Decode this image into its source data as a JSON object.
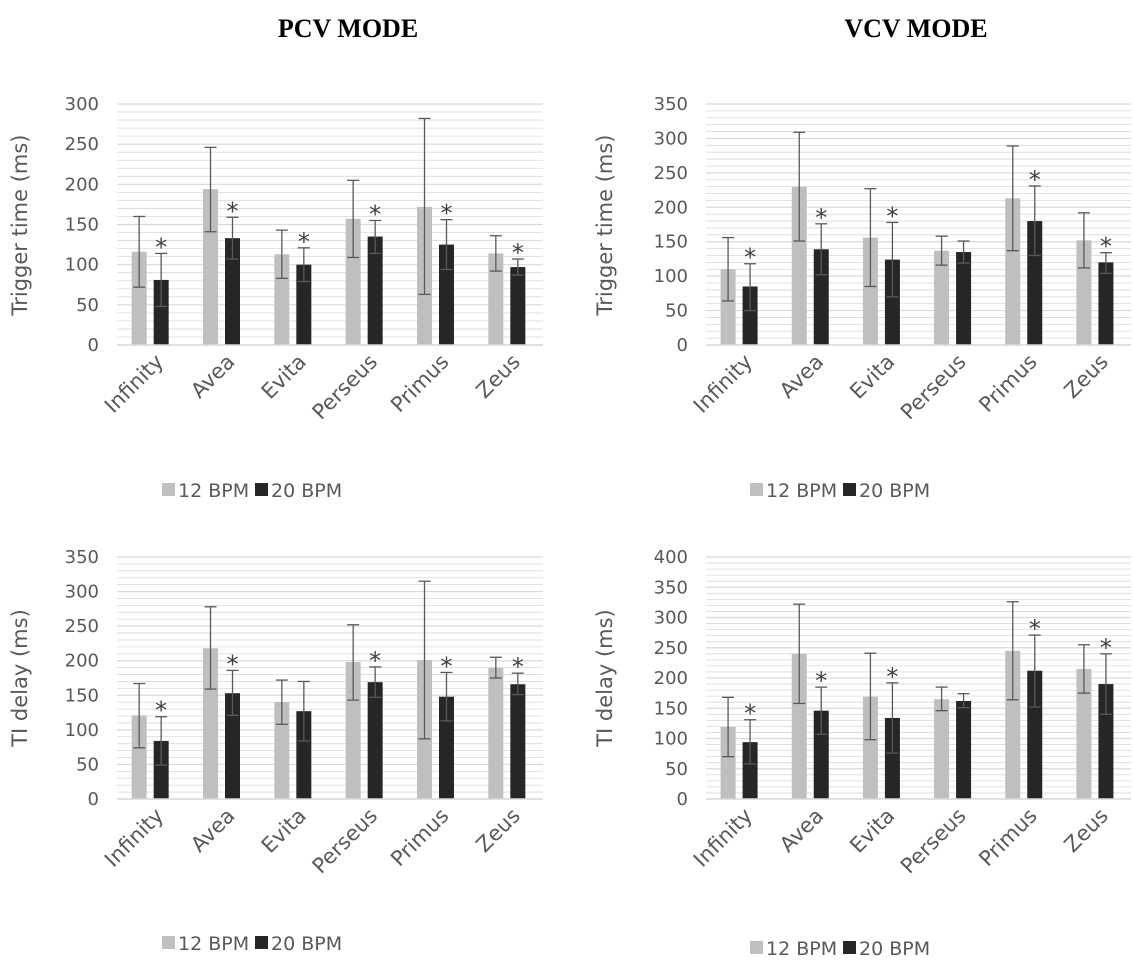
{
  "titles": {
    "pcv": "PCV MODE",
    "vcv": "VCV MODE"
  },
  "colors": {
    "bpm12": "#bfbfbf",
    "bpm20": "#262626",
    "grid": "#d9d9d9",
    "error_bar": "#595959",
    "axis_text": "#595959"
  },
  "chart_data": [
    {
      "id": "pcv-trigger",
      "type": "bar",
      "title": "",
      "xlabel": "",
      "ylabel": "Trigger time (ms)",
      "ylim": [
        0,
        300
      ],
      "ytick_step": 50,
      "minor_grid_step": 10,
      "categories": [
        "Infinity",
        "Avea",
        "Evita",
        "Perseus",
        "Primus",
        "Zeus"
      ],
      "significance_marker": "*",
      "legend_position": "bottom",
      "series": [
        {
          "name": "12 BPM",
          "values": [
            116,
            194,
            113,
            157,
            172,
            114
          ],
          "err_low": [
            72,
            141,
            83,
            109,
            63,
            92
          ],
          "err_high": [
            160,
            246,
            143,
            205,
            282,
            136
          ]
        },
        {
          "name": "20 BPM",
          "values": [
            81,
            133,
            100,
            135,
            125,
            97
          ],
          "err_low": [
            48,
            107,
            79,
            114,
            94,
            87
          ],
          "err_high": [
            114,
            159,
            121,
            155,
            156,
            107
          ],
          "significant": [
            true,
            true,
            true,
            true,
            true,
            true
          ]
        }
      ]
    },
    {
      "id": "vcv-trigger",
      "type": "bar",
      "title": "",
      "xlabel": "",
      "ylabel": "Trigger time (ms)",
      "ylim": [
        0,
        350
      ],
      "ytick_step": 50,
      "minor_grid_step": 10,
      "categories": [
        "Infinity",
        "Avea",
        "Evita",
        "Perseus",
        "Primus",
        "Zeus"
      ],
      "significance_marker": "*",
      "legend_position": "bottom",
      "series": [
        {
          "name": "12 BPM",
          "values": [
            110,
            230,
            156,
            137,
            213,
            152
          ],
          "err_low": [
            64,
            151,
            85,
            116,
            137,
            112
          ],
          "err_high": [
            156,
            309,
            227,
            158,
            289,
            192
          ]
        },
        {
          "name": "20 BPM",
          "values": [
            85,
            139,
            124,
            135,
            180,
            120
          ],
          "err_low": [
            50,
            102,
            70,
            119,
            130,
            104
          ],
          "err_high": [
            118,
            176,
            178,
            151,
            231,
            134
          ],
          "significant": [
            true,
            true,
            true,
            false,
            true,
            true
          ]
        }
      ]
    },
    {
      "id": "pcv-delay",
      "type": "bar",
      "title": "",
      "xlabel": "",
      "ylabel": "TI delay (ms)",
      "ylim": [
        0,
        350
      ],
      "ytick_step": 50,
      "minor_grid_step": 10,
      "categories": [
        "Infinity",
        "Avea",
        "Evita",
        "Perseus",
        "Primus",
        "Zeus"
      ],
      "significance_marker": "*",
      "legend_position": "bottom",
      "series": [
        {
          "name": "12 BPM",
          "values": [
            121,
            218,
            140,
            198,
            201,
            190
          ],
          "err_low": [
            74,
            159,
            108,
            143,
            87,
            175
          ],
          "err_high": [
            167,
            278,
            172,
            252,
            315,
            205
          ]
        },
        {
          "name": "20 BPM",
          "values": [
            84,
            153,
            127,
            169,
            148,
            166
          ],
          "err_low": [
            49,
            121,
            84,
            147,
            113,
            151
          ],
          "err_high": [
            119,
            186,
            170,
            191,
            183,
            182
          ],
          "significant": [
            true,
            true,
            false,
            true,
            true,
            true
          ]
        }
      ]
    },
    {
      "id": "vcv-delay",
      "type": "bar",
      "title": "",
      "xlabel": "",
      "ylabel": "TI delay (ms)",
      "ylim": [
        0,
        400
      ],
      "ytick_step": 50,
      "minor_grid_step": 10,
      "categories": [
        "Infinity",
        "Avea",
        "Evita",
        "Perseus",
        "Primus",
        "Zeus"
      ],
      "significance_marker": "*",
      "legend_position": "bottom",
      "series": [
        {
          "name": "12 BPM",
          "values": [
            119,
            240,
            169,
            165,
            245,
            215
          ],
          "err_low": [
            70,
            158,
            98,
            146,
            164,
            175
          ],
          "err_high": [
            168,
            322,
            241,
            185,
            326,
            255
          ]
        },
        {
          "name": "20 BPM",
          "values": [
            94,
            146,
            134,
            162,
            212,
            190
          ],
          "err_low": [
            58,
            107,
            76,
            151,
            152,
            140
          ],
          "err_high": [
            131,
            185,
            192,
            174,
            271,
            240
          ],
          "significant": [
            true,
            true,
            true,
            false,
            true,
            true
          ]
        }
      ]
    }
  ]
}
